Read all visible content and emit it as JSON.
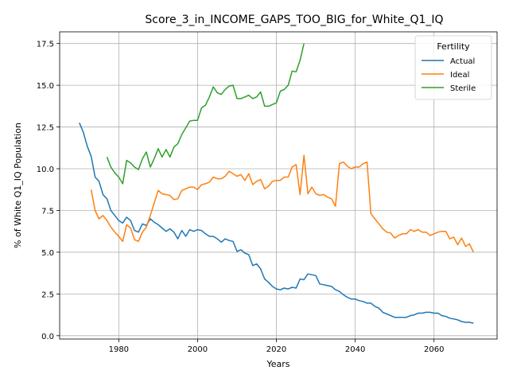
{
  "chart_data": {
    "type": "line",
    "title": "Score_3_in_INCOME_GAPS_TOO_BIG_for_White_Q1_IQ",
    "xlabel": "Years",
    "ylabel": "% of White Q1_IQ Population",
    "xlim": [
      1965,
      2076
    ],
    "ylim": [
      -0.2,
      18.2
    ],
    "xticks": [
      1980,
      2000,
      2020,
      2040,
      2060
    ],
    "yticks": [
      0.0,
      2.5,
      5.0,
      7.5,
      10.0,
      12.5,
      15.0,
      17.5
    ],
    "grid": true,
    "legend": {
      "title": "Fertility",
      "placement": "top-right"
    },
    "series": [
      {
        "name": "Actual",
        "color": "#1f77b4",
        "x": [
          1970,
          1971,
          1972,
          1973,
          1974,
          1975,
          1976,
          1977,
          1978,
          1979,
          1980,
          1981,
          1982,
          1983,
          1984,
          1985,
          1986,
          1987,
          1988,
          1989,
          1990,
          1991,
          1992,
          1993,
          1994,
          1995,
          1996,
          1997,
          1998,
          1999,
          2000,
          2001,
          2002,
          2003,
          2004,
          2005,
          2006,
          2007,
          2008,
          2009,
          2010,
          2011,
          2012,
          2013,
          2014,
          2015,
          2016,
          2017,
          2018,
          2019,
          2020,
          2021,
          2022,
          2023,
          2024,
          2025,
          2026,
          2027,
          2028,
          2029,
          2030,
          2031,
          2032,
          2033,
          2034,
          2035,
          2036,
          2037,
          2038,
          2039,
          2040,
          2041,
          2042,
          2043,
          2044,
          2045,
          2046,
          2047,
          2048,
          2049,
          2050,
          2051,
          2052,
          2053,
          2054,
          2055,
          2056,
          2057,
          2058,
          2059,
          2060,
          2061,
          2062,
          2063,
          2064,
          2065,
          2066,
          2067,
          2068,
          2069,
          2070
        ],
        "y": [
          12.75,
          12.2,
          11.35,
          10.75,
          9.5,
          9.25,
          8.45,
          8.2,
          7.5,
          7.2,
          6.9,
          6.75,
          7.1,
          6.9,
          6.3,
          6.2,
          6.7,
          6.6,
          7.0,
          6.8,
          6.65,
          6.45,
          6.25,
          6.4,
          6.2,
          5.8,
          6.3,
          5.95,
          6.35,
          6.25,
          6.35,
          6.3,
          6.1,
          5.95,
          5.95,
          5.8,
          5.6,
          5.8,
          5.7,
          5.65,
          5.05,
          5.15,
          4.95,
          4.85,
          4.2,
          4.3,
          4.0,
          3.4,
          3.2,
          2.95,
          2.8,
          2.75,
          2.85,
          2.8,
          2.9,
          2.85,
          3.4,
          3.35,
          3.7,
          3.65,
          3.6,
          3.1,
          3.05,
          3.0,
          2.95,
          2.75,
          2.65,
          2.45,
          2.3,
          2.2,
          2.2,
          2.1,
          2.05,
          1.95,
          1.95,
          1.75,
          1.65,
          1.4,
          1.3,
          1.2,
          1.1,
          1.1,
          1.1,
          1.1,
          1.2,
          1.25,
          1.35,
          1.35,
          1.4,
          1.4,
          1.35,
          1.35,
          1.2,
          1.15,
          1.05,
          1.0,
          0.95,
          0.85,
          0.8,
          0.8,
          0.75
        ]
      },
      {
        "name": "Ideal",
        "color": "#ff7f0e",
        "x": [
          1973,
          1974,
          1975,
          1976,
          1977,
          1978,
          1979,
          1980,
          1981,
          1982,
          1983,
          1984,
          1985,
          1986,
          1987,
          1988,
          1989,
          1990,
          1991,
          1992,
          1993,
          1994,
          1995,
          1996,
          1997,
          1998,
          1999,
          2000,
          2001,
          2002,
          2003,
          2004,
          2005,
          2006,
          2007,
          2008,
          2009,
          2010,
          2011,
          2012,
          2013,
          2014,
          2015,
          2016,
          2017,
          2018,
          2019,
          2020,
          2021,
          2022,
          2023,
          2024,
          2025,
          2026,
          2027,
          2028,
          2029,
          2030,
          2031,
          2032,
          2033,
          2034,
          2035,
          2036,
          2037,
          2038,
          2039,
          2040,
          2041,
          2042,
          2043,
          2044,
          2045,
          2046,
          2047,
          2048,
          2049,
          2050,
          2051,
          2052,
          2053,
          2054,
          2055,
          2056,
          2057,
          2058,
          2059,
          2060,
          2061,
          2062,
          2063,
          2064,
          2065,
          2066,
          2067,
          2068,
          2069,
          2070
        ],
        "y": [
          8.75,
          7.5,
          7.0,
          7.2,
          6.9,
          6.5,
          6.2,
          5.95,
          5.65,
          6.65,
          6.45,
          5.75,
          5.65,
          6.2,
          6.5,
          7.2,
          7.95,
          8.7,
          8.5,
          8.45,
          8.4,
          8.15,
          8.2,
          8.7,
          8.8,
          8.9,
          8.9,
          8.75,
          9.05,
          9.1,
          9.2,
          9.5,
          9.4,
          9.4,
          9.55,
          9.85,
          9.7,
          9.55,
          9.65,
          9.3,
          9.7,
          9.05,
          9.25,
          9.35,
          8.8,
          8.95,
          9.25,
          9.3,
          9.3,
          9.5,
          9.5,
          10.1,
          10.25,
          8.45,
          10.8,
          8.5,
          8.9,
          8.5,
          8.4,
          8.45,
          8.3,
          8.2,
          7.75,
          10.3,
          10.4,
          10.15,
          10.0,
          10.1,
          10.1,
          10.3,
          10.4,
          7.3,
          7.0,
          6.7,
          6.4,
          6.2,
          6.15,
          5.85,
          6.0,
          6.1,
          6.1,
          6.35,
          6.25,
          6.35,
          6.2,
          6.2,
          6.0,
          6.1,
          6.2,
          6.25,
          6.25,
          5.8,
          5.9,
          5.45,
          5.85,
          5.35,
          5.5,
          5.0
        ]
      },
      {
        "name": "Sterile",
        "color": "#2ca02c",
        "x": [
          1977,
          1978,
          1979,
          1980,
          1981,
          1982,
          1983,
          1984,
          1985,
          1986,
          1987,
          1988,
          1989,
          1990,
          1991,
          1992,
          1993,
          1994,
          1995,
          1996,
          1997,
          1998,
          1999,
          2000,
          2001,
          2002,
          2003,
          2004,
          2005,
          2006,
          2007,
          2008,
          2009,
          2010,
          2011,
          2012,
          2013,
          2014,
          2015,
          2016,
          2017,
          2018,
          2019,
          2020,
          2021,
          2022,
          2023,
          2024,
          2025,
          2026,
          2027
        ],
        "y": [
          10.7,
          10.1,
          9.75,
          9.5,
          9.1,
          10.5,
          10.35,
          10.1,
          9.95,
          10.6,
          11.0,
          10.1,
          10.6,
          11.2,
          10.7,
          11.15,
          10.7,
          11.3,
          11.5,
          12.05,
          12.45,
          12.85,
          12.9,
          12.9,
          13.65,
          13.8,
          14.3,
          14.9,
          14.55,
          14.45,
          14.75,
          14.95,
          15.0,
          14.2,
          14.2,
          14.3,
          14.4,
          14.2,
          14.3,
          14.6,
          13.75,
          13.75,
          13.85,
          13.95,
          14.65,
          14.75,
          15.0,
          15.85,
          15.8,
          16.5,
          17.5
        ]
      }
    ]
  }
}
